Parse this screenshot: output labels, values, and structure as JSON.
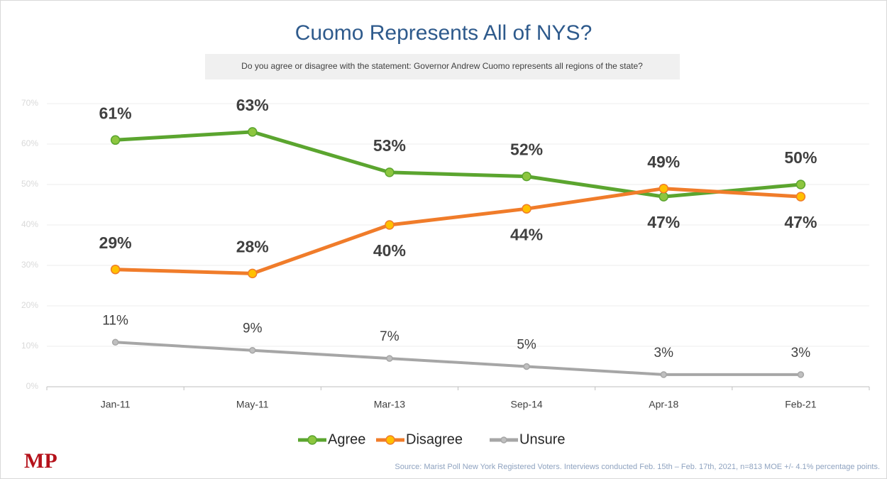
{
  "chart_data": {
    "type": "line",
    "title": "Cuomo Represents All of NYS?",
    "subtitle": "Do you agree or disagree with the statement: Governor Andrew Cuomo represents all regions of the state?",
    "categories": [
      "Jan-11",
      "May-11",
      "Mar-13",
      "Sep-14",
      "Apr-18",
      "Feb-21"
    ],
    "series": [
      {
        "name": "Agree",
        "color": "#5ba52f",
        "marker_color": "#8dc63f",
        "values": [
          61,
          63,
          53,
          52,
          47,
          50
        ],
        "value_labels": [
          "61%",
          "63%",
          "53%",
          "52%",
          "47%",
          "50%"
        ]
      },
      {
        "name": "Disagree",
        "color": "#f07c2a",
        "marker_color": "#ffc000",
        "values": [
          29,
          28,
          40,
          44,
          49,
          47
        ],
        "value_labels": [
          "29%",
          "28%",
          "40%",
          "44%",
          "49%",
          "47%"
        ]
      },
      {
        "name": "Unsure",
        "color": "#a6a6a6",
        "marker_color": "#bfbfbf",
        "values": [
          11,
          9,
          7,
          5,
          3,
          3
        ],
        "value_labels": [
          "11%",
          "9%",
          "7%",
          "5%",
          "3%",
          "3%"
        ]
      }
    ],
    "ylim": [
      0,
      70
    ],
    "yticks": [
      {
        "value": 0,
        "label": "0%"
      },
      {
        "value": 10,
        "label": "10%"
      },
      {
        "value": 20,
        "label": "20%"
      },
      {
        "value": 30,
        "label": "30%"
      },
      {
        "value": 40,
        "label": "40%"
      },
      {
        "value": 50,
        "label": "50%"
      },
      {
        "value": 60,
        "label": "60%"
      },
      {
        "value": 70,
        "label": "70%"
      }
    ],
    "grid": true,
    "legend": "bottom",
    "logo": "MP",
    "source": "Source: Marist Poll New York Registered Voters. Interviews conducted Feb. 15th – Feb. 17th, 2021, n=813 MOE +/- 4.1% percentage points."
  }
}
